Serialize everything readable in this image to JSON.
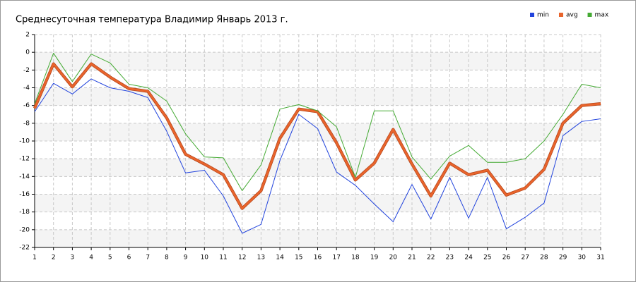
{
  "chart_data": {
    "type": "line",
    "title": "Среднесуточная температура Владимир  Январь 2013 г.",
    "x": [
      1,
      2,
      3,
      4,
      5,
      6,
      7,
      8,
      9,
      10,
      11,
      12,
      13,
      14,
      15,
      16,
      17,
      18,
      19,
      20,
      21,
      22,
      23,
      24,
      25,
      26,
      27,
      28,
      29,
      30,
      31
    ],
    "series": [
      {
        "name": "min",
        "color": "#2244dd",
        "values": [
          -6.7,
          -3.5,
          -4.7,
          -3.0,
          -4.0,
          -4.4,
          -5.1,
          -8.9,
          -13.6,
          -13.3,
          -16.2,
          -20.4,
          -19.4,
          -12.2,
          -7.0,
          -8.6,
          -13.5,
          -15.0,
          -17.1,
          -19.1,
          -14.9,
          -18.8,
          -14.1,
          -18.7,
          -14.1,
          -19.9,
          -18.6,
          -17.0,
          -9.4,
          -7.8,
          -7.5
        ]
      },
      {
        "name": "avg",
        "color": "#e8642c",
        "values": [
          -6.3,
          -1.3,
          -3.9,
          -1.3,
          -2.8,
          -4.1,
          -4.4,
          -7.4,
          -11.5,
          -12.6,
          -13.8,
          -17.6,
          -15.6,
          -9.7,
          -6.4,
          -6.7,
          -10.2,
          -14.4,
          -12.5,
          -8.7,
          -12.6,
          -16.2,
          -12.5,
          -13.8,
          -13.3,
          -16.1,
          -15.3,
          -13.2,
          -8.0,
          -6.0,
          -5.8
        ]
      },
      {
        "name": "max",
        "color": "#44aa33",
        "values": [
          -5.8,
          -0.1,
          -3.3,
          -0.2,
          -1.2,
          -3.6,
          -4.0,
          -5.5,
          -9.2,
          -11.8,
          -11.9,
          -15.6,
          -12.7,
          -6.4,
          -5.9,
          -6.6,
          -8.4,
          -14.1,
          -6.6,
          -6.6,
          -11.8,
          -14.3,
          -11.7,
          -10.5,
          -12.4,
          -12.4,
          -12.0,
          -10.0,
          -7.0,
          -3.6,
          -4.0
        ]
      }
    ],
    "xlim": [
      1,
      31
    ],
    "xticks": [
      1,
      2,
      3,
      4,
      5,
      6,
      7,
      8,
      9,
      10,
      11,
      12,
      13,
      14,
      15,
      16,
      17,
      18,
      19,
      20,
      21,
      22,
      23,
      24,
      25,
      26,
      27,
      28,
      29,
      30,
      31
    ],
    "ylim": [
      -22,
      2
    ],
    "yticks": [
      2,
      0,
      -2,
      -4,
      -6,
      -8,
      -10,
      -12,
      -14,
      -16,
      -18,
      -20,
      -22
    ],
    "grid": true,
    "legend": "top-right"
  }
}
